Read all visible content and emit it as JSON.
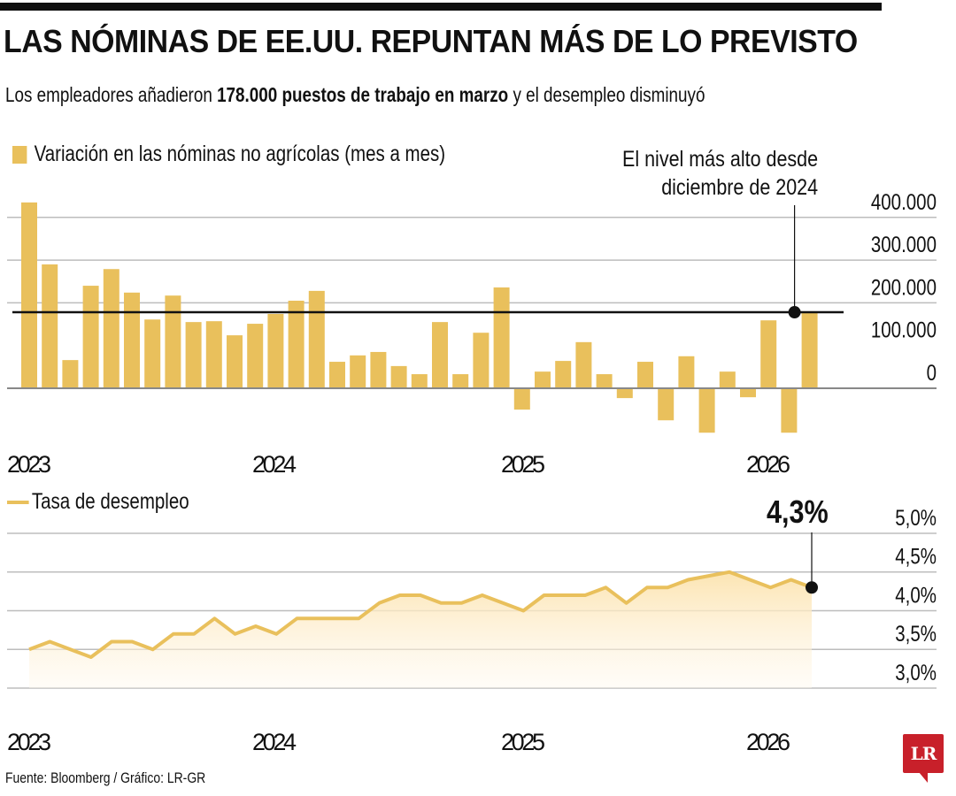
{
  "header": {
    "title": "LAS NÓMINAS DE EE.UU. REPUNTAN MÁS DE LO PREVISTO",
    "subtitle_pre": "Los empleadores añadieron ",
    "subtitle_bold": "178.000 puestos de trabajo en marzo",
    "subtitle_post": " y el desempleo disminuyó"
  },
  "colors": {
    "bar": "#E9C05C",
    "line": "#E9C05C",
    "fill": "#FCE6B8",
    "grid": "#BDBDBD",
    "reference": "#111111",
    "logo": "#C8202A"
  },
  "footer": {
    "source": "Fuente: Bloomberg / Gráfico: LR-GR",
    "logo_text": "LR"
  },
  "chart_data": [
    {
      "type": "bar",
      "title": "Variación en las nóminas no agrícolas (mes a mes)",
      "legend": "Variación en las nóminas no agrícolas (mes a mes)",
      "legend_position": "top-left",
      "x_tick_labels": [
        "2023",
        "2024",
        "2025",
        "2026"
      ],
      "x_tick_index": [
        0,
        12,
        24,
        36
      ],
      "x_start": "2023-01",
      "x_end": "2026-03",
      "y_tick_labels": [
        "400.000",
        "300.000",
        "200.000",
        "100.000",
        "0"
      ],
      "y_ticks": [
        400000,
        300000,
        200000,
        100000,
        0
      ],
      "ylim": [
        -110000,
        440000
      ],
      "grid": true,
      "reference_line": 178000,
      "annotation": {
        "text_line1": "El nivel más alto desde",
        "text_line2": "diciembre de 2024",
        "index": 38,
        "value": 178000
      },
      "values": [
        435000,
        290000,
        66000,
        240000,
        279000,
        224000,
        161000,
        217000,
        155000,
        157000,
        124000,
        151000,
        174000,
        205000,
        228000,
        62000,
        77000,
        85000,
        52000,
        33000,
        155000,
        33000,
        130000,
        236000,
        -50000,
        39000,
        64000,
        108000,
        33000,
        -23000,
        62000,
        -75000,
        75000,
        -104000,
        39000,
        -21000,
        159000,
        -104000,
        178000
      ]
    },
    {
      "type": "area",
      "title": "Tasa de desempleo",
      "legend": "Tasa de desempleo",
      "legend_position": "top-left",
      "x_tick_labels": [
        "2023",
        "2024",
        "2025",
        "2026"
      ],
      "x_tick_index": [
        0,
        12,
        24,
        36
      ],
      "x_start": "2023-01",
      "x_end": "2026-03",
      "y_tick_labels": [
        "5,0%",
        "4,5%",
        "4,0%",
        "3,5%",
        "3,0%"
      ],
      "y_ticks": [
        5.0,
        4.5,
        4.0,
        3.5,
        3.0
      ],
      "ylim": [
        3.0,
        5.0
      ],
      "grid": true,
      "annotation": {
        "text": "4,3%",
        "index": 38,
        "value": 4.3
      },
      "values": [
        3.5,
        3.6,
        3.5,
        3.4,
        3.6,
        3.6,
        3.5,
        3.7,
        3.7,
        3.9,
        3.7,
        3.8,
        3.7,
        3.9,
        3.9,
        3.9,
        3.9,
        4.1,
        4.2,
        4.2,
        4.1,
        4.1,
        4.2,
        4.1,
        4.0,
        4.2,
        4.2,
        4.2,
        4.3,
        4.1,
        4.3,
        4.3,
        4.4,
        4.45,
        4.5,
        4.4,
        4.3,
        4.4,
        4.3
      ]
    }
  ]
}
